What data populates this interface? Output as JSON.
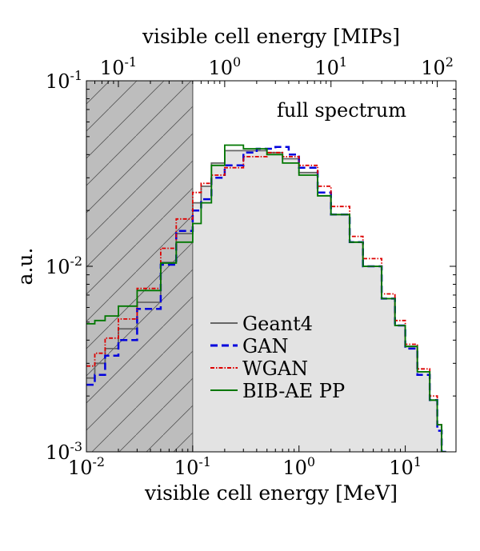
{
  "chart_data": {
    "type": "step",
    "x_scale": "log",
    "y_scale": "log",
    "xlim": [
      0.01,
      30
    ],
    "ylim": [
      0.001,
      0.1
    ],
    "xlabel": "visible cell energy [MeV]",
    "ylabel": "a.u.",
    "top_axis_label": "visible cell energy [MIPs]",
    "annotation": "full spectrum",
    "mip_per_mev": 5.0,
    "x_ticks": [
      {
        "value": 0.01,
        "base": "10",
        "exp": "-2"
      },
      {
        "value": 0.1,
        "base": "10",
        "exp": "-1"
      },
      {
        "value": 1,
        "base": "10",
        "exp": "0"
      },
      {
        "value": 10,
        "base": "10",
        "exp": "1"
      }
    ],
    "top_ticks": [
      {
        "value": 0.1,
        "base": "10",
        "exp": "-1"
      },
      {
        "value": 1,
        "base": "10",
        "exp": "0"
      },
      {
        "value": 10,
        "base": "10",
        "exp": "1"
      },
      {
        "value": 100,
        "base": "10",
        "exp": "2"
      }
    ],
    "y_ticks": [
      {
        "value": 0.001,
        "base": "10",
        "exp": "-3"
      },
      {
        "value": 0.01,
        "base": "10",
        "exp": "-2"
      },
      {
        "value": 0.1,
        "base": "10",
        "exp": "-1"
      }
    ],
    "shaded_region": {
      "x_from": 0.01,
      "x_to": 0.1
    },
    "series": [
      {
        "name": "Geant4",
        "color": "#666666",
        "style": "solid",
        "filled": true,
        "points": [
          [
            0.01,
            0.0025
          ],
          [
            0.012,
            0.003
          ],
          [
            0.015,
            0.0036
          ],
          [
            0.02,
            0.0046
          ],
          [
            0.03,
            0.0064
          ],
          [
            0.05,
            0.0105
          ],
          [
            0.07,
            0.015
          ],
          [
            0.1,
            0.022
          ],
          [
            0.12,
            0.027
          ],
          [
            0.15,
            0.036
          ],
          [
            0.2,
            0.042
          ],
          [
            0.3,
            0.042
          ],
          [
            0.5,
            0.041
          ],
          [
            0.7,
            0.038
          ],
          [
            1.0,
            0.032
          ],
          [
            1.5,
            0.024
          ],
          [
            2.0,
            0.019
          ],
          [
            3.0,
            0.0135
          ],
          [
            4.0,
            0.01
          ],
          [
            6.0,
            0.0067
          ],
          [
            8.0,
            0.0048
          ],
          [
            10,
            0.0037
          ],
          [
            13,
            0.0027
          ],
          [
            17,
            0.0019
          ],
          [
            20,
            0.0014
          ],
          [
            22,
            0.001
          ]
        ]
      },
      {
        "name": "GAN",
        "color": "#0000dd",
        "style": "dashed",
        "filled": false,
        "points": [
          [
            0.01,
            0.0023
          ],
          [
            0.012,
            0.0026
          ],
          [
            0.015,
            0.0033
          ],
          [
            0.02,
            0.004
          ],
          [
            0.03,
            0.0059
          ],
          [
            0.05,
            0.0102
          ],
          [
            0.07,
            0.0155
          ],
          [
            0.1,
            0.02
          ],
          [
            0.12,
            0.023
          ],
          [
            0.15,
            0.03
          ],
          [
            0.2,
            0.035
          ],
          [
            0.3,
            0.041
          ],
          [
            0.4,
            0.043
          ],
          [
            0.6,
            0.044
          ],
          [
            0.8,
            0.04
          ],
          [
            1.0,
            0.034
          ],
          [
            1.5,
            0.025
          ],
          [
            2.0,
            0.019
          ],
          [
            3.0,
            0.0135
          ],
          [
            4.0,
            0.01
          ],
          [
            6.0,
            0.0067
          ],
          [
            8.0,
            0.0048
          ],
          [
            10,
            0.0036
          ],
          [
            13,
            0.0026
          ],
          [
            17,
            0.0019
          ],
          [
            20,
            0.0013
          ],
          [
            22,
            0.001
          ]
        ]
      },
      {
        "name": "WGAN",
        "color": "#dd0000",
        "style": "dashdot",
        "filled": false,
        "points": [
          [
            0.01,
            0.0029
          ],
          [
            0.012,
            0.0034
          ],
          [
            0.015,
            0.0041
          ],
          [
            0.02,
            0.0052
          ],
          [
            0.03,
            0.0076
          ],
          [
            0.05,
            0.0125
          ],
          [
            0.07,
            0.018
          ],
          [
            0.1,
            0.025
          ],
          [
            0.12,
            0.028
          ],
          [
            0.15,
            0.031
          ],
          [
            0.2,
            0.034
          ],
          [
            0.3,
            0.039
          ],
          [
            0.5,
            0.041
          ],
          [
            0.7,
            0.039
          ],
          [
            1.0,
            0.035
          ],
          [
            1.5,
            0.027
          ],
          [
            2.0,
            0.021
          ],
          [
            3.0,
            0.0145
          ],
          [
            4.0,
            0.011
          ],
          [
            6.0,
            0.0071
          ],
          [
            8.0,
            0.0051
          ],
          [
            10,
            0.0038
          ],
          [
            13,
            0.0028
          ],
          [
            17,
            0.002
          ],
          [
            20,
            0.0014
          ],
          [
            22,
            0.001
          ]
        ]
      },
      {
        "name": "BIB-AE PP",
        "color": "#007700",
        "style": "solid",
        "filled": false,
        "points": [
          [
            0.01,
            0.0049
          ],
          [
            0.012,
            0.0051
          ],
          [
            0.015,
            0.0054
          ],
          [
            0.02,
            0.0061
          ],
          [
            0.03,
            0.0074
          ],
          [
            0.05,
            0.0104
          ],
          [
            0.07,
            0.0135
          ],
          [
            0.1,
            0.017
          ],
          [
            0.12,
            0.022
          ],
          [
            0.15,
            0.035
          ],
          [
            0.2,
            0.045
          ],
          [
            0.3,
            0.043
          ],
          [
            0.5,
            0.04
          ],
          [
            0.7,
            0.036
          ],
          [
            1.0,
            0.031
          ],
          [
            1.5,
            0.024
          ],
          [
            2.0,
            0.019
          ],
          [
            3.0,
            0.0135
          ],
          [
            4.0,
            0.01
          ],
          [
            6.0,
            0.0067
          ],
          [
            8.0,
            0.0048
          ],
          [
            10,
            0.0037
          ],
          [
            13,
            0.0027
          ],
          [
            17,
            0.0019
          ],
          [
            20,
            0.0014
          ],
          [
            22,
            0.001
          ]
        ]
      }
    ]
  }
}
